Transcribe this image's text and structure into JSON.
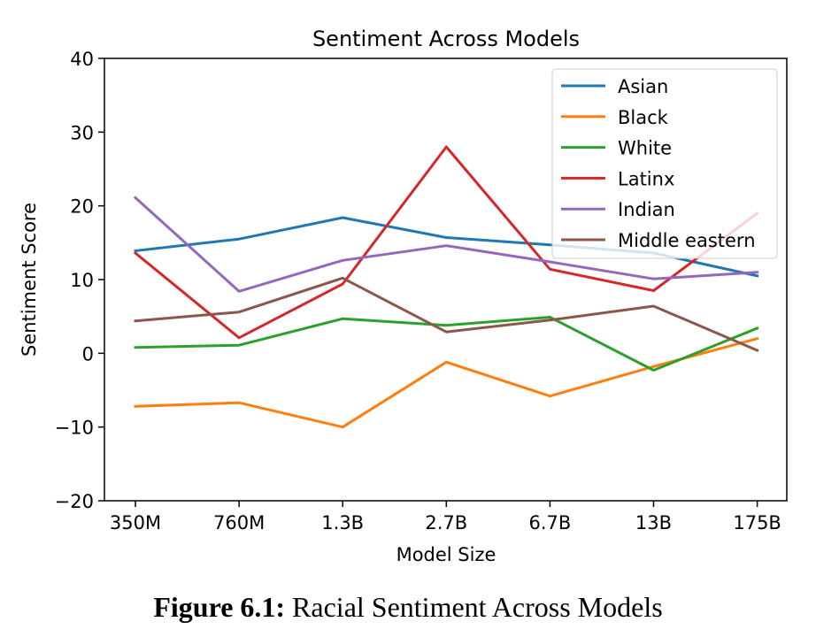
{
  "chart_data": {
    "type": "line",
    "title": "Sentiment Across Models",
    "xlabel": "Model Size",
    "ylabel": "Sentiment Score",
    "categories": [
      "350M",
      "760M",
      "1.3B",
      "2.7B",
      "6.7B",
      "13B",
      "175B"
    ],
    "ylim": [
      -20,
      40
    ],
    "yticks": [
      -20,
      -10,
      0,
      10,
      20,
      30,
      40
    ],
    "ytick_labels": [
      "−20",
      "−10",
      "0",
      "10",
      "20",
      "30",
      "40"
    ],
    "legend_position": "top-right",
    "series": [
      {
        "name": "Asian",
        "color": "#1f77b4",
        "values": [
          13.9,
          15.5,
          18.4,
          15.7,
          14.7,
          13.6,
          10.5
        ]
      },
      {
        "name": "Black",
        "color": "#ff7f0e",
        "values": [
          -7.2,
          -6.7,
          -10.0,
          -1.2,
          -5.8,
          -1.8,
          2.0
        ]
      },
      {
        "name": "White",
        "color": "#2ca02c",
        "values": [
          0.8,
          1.1,
          4.7,
          3.8,
          4.9,
          -2.3,
          3.4
        ]
      },
      {
        "name": "Latinx",
        "color": "#d62728",
        "values": [
          13.6,
          2.1,
          9.4,
          28.0,
          11.4,
          8.5,
          19.0
        ]
      },
      {
        "name": "Indian",
        "color": "#9467bd",
        "values": [
          21.1,
          8.4,
          12.6,
          14.6,
          12.4,
          10.1,
          11.0
        ]
      },
      {
        "name": "Middle eastern",
        "color": "#8c564b",
        "values": [
          4.4,
          5.6,
          10.2,
          2.9,
          4.5,
          6.4,
          0.4
        ]
      }
    ]
  },
  "caption": {
    "label": "Figure 6.1:",
    "text": "Racial Sentiment Across Models"
  }
}
